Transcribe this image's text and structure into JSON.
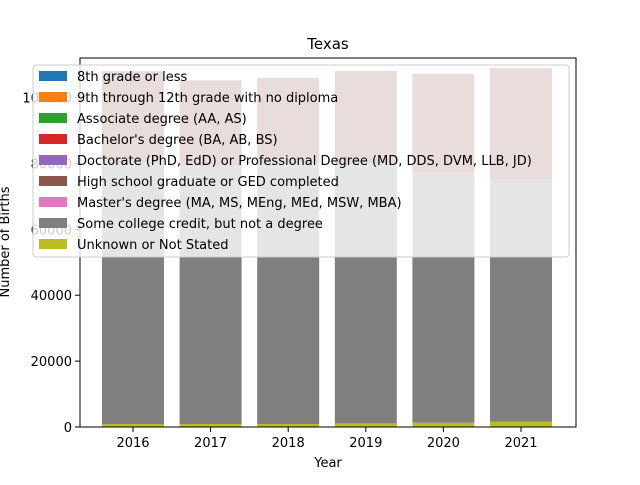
{
  "chart_data": {
    "type": "bar",
    "stacked": true,
    "title": "Texas",
    "xlabel": "Year",
    "ylabel": "Number of Births",
    "ylim": [
      0,
      112000
    ],
    "yticks": [
      0,
      20000,
      40000,
      60000,
      80000,
      100000
    ],
    "ytick_labels": [
      "0",
      "20000",
      "40000",
      "60000",
      "80000",
      "100000"
    ],
    "categories": [
      "2016",
      "2017",
      "2018",
      "2019",
      "2020",
      "2021"
    ],
    "legend_position": "top-left",
    "grid": false,
    "series": [
      {
        "name": "Unknown or Not Stated",
        "color": "#bcbd22",
        "values": [
          900,
          900,
          900,
          1100,
          1300,
          1600
        ]
      },
      {
        "name": "Some college credit, but not a degree",
        "color": "#7f7f7f",
        "values": [
          79100,
          78300,
          79100,
          79000,
          75900,
          73400
        ]
      },
      {
        "name": "Master's degree (MA, MS, MEng, MEd, MSW, MBA)",
        "color": "#e377c2",
        "values": [
          0,
          0,
          0,
          0,
          0,
          0
        ]
      },
      {
        "name": "High school graduate or GED completed",
        "color": "#8c564b",
        "values": [
          28000,
          26000,
          26000,
          28000,
          30000,
          34000
        ]
      },
      {
        "name": "Doctorate (PhD, EdD) or Professional Degree (MD, DDS, DVM, LLB, JD)",
        "color": "#9467bd",
        "values": [
          0,
          0,
          0,
          0,
          0,
          0
        ]
      },
      {
        "name": "Bachelor's degree (BA, AB, BS)",
        "color": "#d62728",
        "values": [
          0,
          0,
          0,
          0,
          0,
          0
        ]
      },
      {
        "name": "Associate degree (AA, AS)",
        "color": "#2ca02c",
        "values": [
          0,
          0,
          0,
          0,
          0,
          0
        ]
      },
      {
        "name": "9th through 12th grade with no diploma",
        "color": "#ff7f0e",
        "values": [
          0,
          0,
          0,
          0,
          0,
          0
        ]
      },
      {
        "name": "8th grade or less",
        "color": "#1f77b4",
        "values": [
          0,
          0,
          0,
          0,
          0,
          0
        ]
      }
    ],
    "legend": [
      {
        "name": "8th grade or less",
        "color": "#1f77b4"
      },
      {
        "name": "9th through 12th grade with no diploma",
        "color": "#ff7f0e"
      },
      {
        "name": "Associate degree (AA, AS)",
        "color": "#2ca02c"
      },
      {
        "name": "Bachelor's degree (BA, AB, BS)",
        "color": "#d62728"
      },
      {
        "name": "Doctorate (PhD, EdD) or Professional Degree (MD, DDS, DVM, LLB, JD)",
        "color": "#9467bd"
      },
      {
        "name": "High school graduate or GED completed",
        "color": "#8c564b"
      },
      {
        "name": "Master's degree (MA, MS, MEng, MEd, MSW, MBA)",
        "color": "#e377c2"
      },
      {
        "name": "Some college credit, but not a degree",
        "color": "#7f7f7f"
      },
      {
        "name": "Unknown or Not Stated",
        "color": "#bcbd22"
      }
    ]
  }
}
